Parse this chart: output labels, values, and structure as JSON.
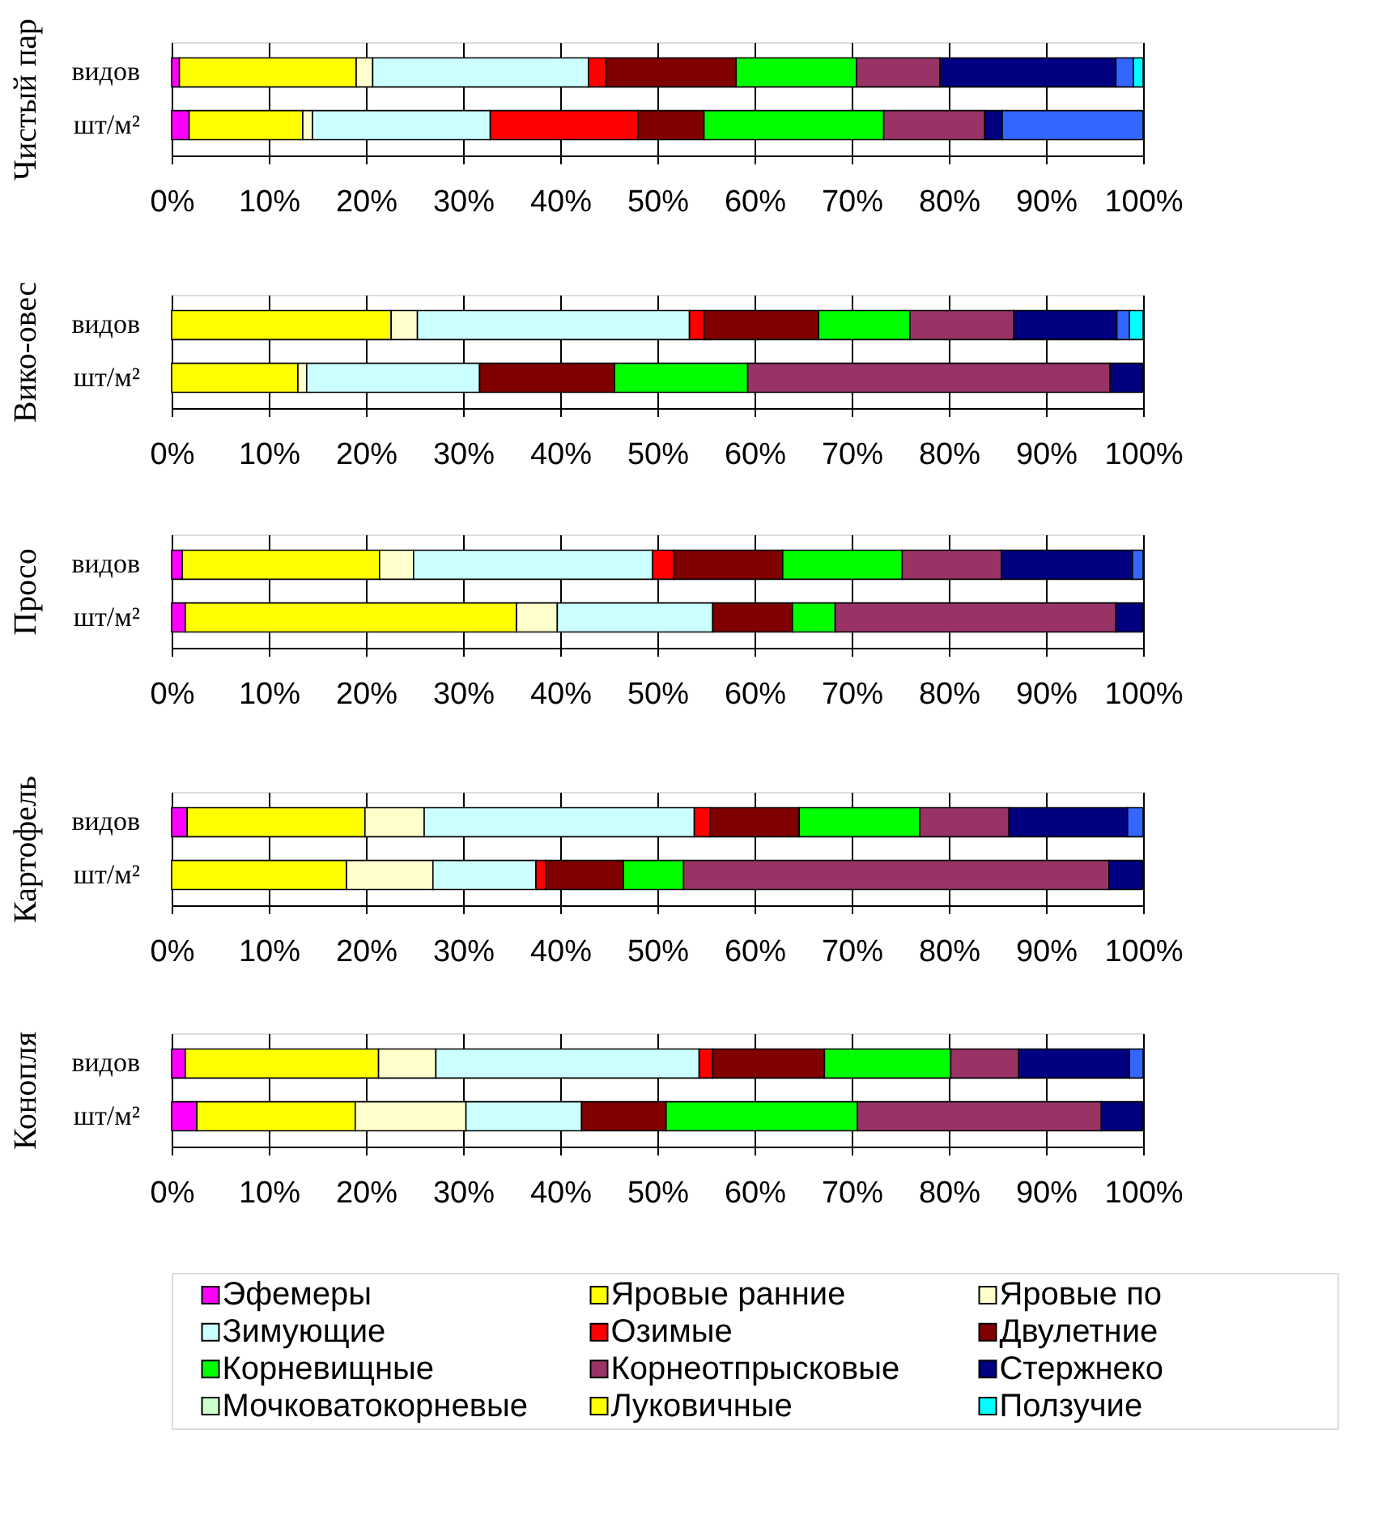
{
  "chart_data": [
    {
      "type": "bar",
      "orientation": "horizontal",
      "stacked": true,
      "ylabel": "Чистый пар",
      "categories": [
        "видов",
        "шт/м²"
      ],
      "xlim": [
        0,
        100
      ],
      "xticks": [
        {
          "value": 0,
          "label": "0%"
        },
        {
          "value": 10,
          "label": "10%"
        },
        {
          "value": 20,
          "label": "20%"
        },
        {
          "value": 30,
          "label": "30%"
        },
        {
          "value": 40,
          "label": "40%"
        },
        {
          "value": 50,
          "label": "50%"
        },
        {
          "value": 60,
          "label": "60%"
        },
        {
          "value": 70,
          "label": "70%"
        },
        {
          "value": 80,
          "label": "80%"
        },
        {
          "value": 90,
          "label": "90%"
        },
        {
          "value": 100,
          "label": "100%"
        }
      ],
      "grid": "x",
      "legend": false,
      "series": [
        {
          "color": "#ff00ff",
          "values": [
            0.8,
            1.8
          ]
        },
        {
          "color": "#ffff00",
          "values": [
            18.2,
            11.7
          ]
        },
        {
          "color": "#ffffcc",
          "values": [
            1.7,
            1.0
          ]
        },
        {
          "color": "#ccffff",
          "values": [
            22.2,
            18.3
          ]
        },
        {
          "color": "#ff0000",
          "values": [
            1.8,
            15.2
          ]
        },
        {
          "color": "#800000",
          "values": [
            13.4,
            6.8
          ]
        },
        {
          "color": "#00ff00",
          "values": [
            12.4,
            18.5
          ]
        },
        {
          "color": "#993366",
          "values": [
            8.6,
            10.4
          ]
        },
        {
          "color": "#000080",
          "values": [
            18.1,
            1.8
          ]
        },
        {
          "color": "#3366ff",
          "values": [
            1.8,
            14.5
          ]
        },
        {
          "color": "#00ffff",
          "values": [
            1.0,
            null
          ]
        }
      ]
    },
    {
      "type": "bar",
      "orientation": "horizontal",
      "stacked": true,
      "ylabel": "Вико-овес",
      "categories": [
        "видов",
        "шт/м²"
      ],
      "xlim": [
        0,
        100
      ],
      "xticks": [
        {
          "value": 0,
          "label": "0%"
        },
        {
          "value": 10,
          "label": "10%"
        },
        {
          "value": 20,
          "label": "20%"
        },
        {
          "value": 30,
          "label": "30%"
        },
        {
          "value": 40,
          "label": "40%"
        },
        {
          "value": 50,
          "label": "50%"
        },
        {
          "value": 60,
          "label": "60%"
        },
        {
          "value": 70,
          "label": "70%"
        },
        {
          "value": 80,
          "label": "80%"
        },
        {
          "value": 90,
          "label": "90%"
        },
        {
          "value": 100,
          "label": "100%"
        }
      ],
      "grid": "x",
      "legend": false,
      "series": [
        {
          "color": "#ffff00",
          "values": [
            22.6,
            13.0
          ]
        },
        {
          "color": "#ffffcc",
          "values": [
            2.7,
            0.9
          ]
        },
        {
          "color": "#ccffff",
          "values": [
            28.0,
            17.8
          ]
        },
        {
          "color": "#ff0000",
          "values": [
            1.5,
            null
          ]
        },
        {
          "color": "#800000",
          "values": [
            11.8,
            13.9
          ]
        },
        {
          "color": "#00ff00",
          "values": [
            9.4,
            13.7
          ]
        },
        {
          "color": "#993366",
          "values": [
            10.7,
            37.3
          ]
        },
        {
          "color": "#000080",
          "values": [
            10.6,
            3.4
          ]
        },
        {
          "color": "#3366ff",
          "values": [
            1.3,
            null
          ]
        },
        {
          "color": "#00ffff",
          "values": [
            1.4,
            null
          ]
        }
      ]
    },
    {
      "type": "bar",
      "orientation": "horizontal",
      "stacked": true,
      "ylabel": "Просо",
      "categories": [
        "видов",
        "шт/м²"
      ],
      "xlim": [
        0,
        100
      ],
      "xticks": [
        {
          "value": 0,
          "label": "0%"
        },
        {
          "value": 10,
          "label": "10%"
        },
        {
          "value": 20,
          "label": "20%"
        },
        {
          "value": 30,
          "label": "30%"
        },
        {
          "value": 40,
          "label": "40%"
        },
        {
          "value": 50,
          "label": "50%"
        },
        {
          "value": 60,
          "label": "60%"
        },
        {
          "value": 70,
          "label": "70%"
        },
        {
          "value": 80,
          "label": "80%"
        },
        {
          "value": 90,
          "label": "90%"
        },
        {
          "value": 100,
          "label": "100%"
        }
      ],
      "grid": "x",
      "legend": false,
      "series": [
        {
          "color": "#ff00ff",
          "values": [
            1.1,
            1.4
          ]
        },
        {
          "color": "#ffff00",
          "values": [
            20.3,
            34.1
          ]
        },
        {
          "color": "#ffffcc",
          "values": [
            3.5,
            4.2
          ]
        },
        {
          "color": "#ccffff",
          "values": [
            24.6,
            16.0
          ]
        },
        {
          "color": "#ff0000",
          "values": [
            2.2,
            null
          ]
        },
        {
          "color": "#800000",
          "values": [
            11.2,
            8.2
          ]
        },
        {
          "color": "#00ff00",
          "values": [
            12.3,
            4.4
          ]
        },
        {
          "color": "#993366",
          "values": [
            10.2,
            28.9
          ]
        },
        {
          "color": "#000080",
          "values": [
            13.5,
            2.8
          ]
        },
        {
          "color": "#3366ff",
          "values": [
            1.1,
            null
          ]
        }
      ]
    },
    {
      "type": "bar",
      "orientation": "horizontal",
      "stacked": true,
      "ylabel": "Картофель",
      "categories": [
        "видов",
        "шт/м²"
      ],
      "xlim": [
        0,
        100
      ],
      "xticks": [
        {
          "value": 0,
          "label": "0%"
        },
        {
          "value": 10,
          "label": "10%"
        },
        {
          "value": 20,
          "label": "20%"
        },
        {
          "value": 30,
          "label": "30%"
        },
        {
          "value": 40,
          "label": "40%"
        },
        {
          "value": 50,
          "label": "50%"
        },
        {
          "value": 60,
          "label": "60%"
        },
        {
          "value": 70,
          "label": "70%"
        },
        {
          "value": 80,
          "label": "80%"
        },
        {
          "value": 90,
          "label": "90%"
        },
        {
          "value": 100,
          "label": "100%"
        }
      ],
      "grid": "x",
      "legend": false,
      "series": [
        {
          "color": "#ff00ff",
          "values": [
            1.6,
            null
          ]
        },
        {
          "color": "#ffff00",
          "values": [
            18.3,
            18.0
          ]
        },
        {
          "color": "#ffffcc",
          "values": [
            6.1,
            8.9
          ]
        },
        {
          "color": "#ccffff",
          "values": [
            27.8,
            10.6
          ]
        },
        {
          "color": "#ff0000",
          "values": [
            1.6,
            1.0
          ]
        },
        {
          "color": "#800000",
          "values": [
            9.2,
            8.0
          ]
        },
        {
          "color": "#00ff00",
          "values": [
            12.4,
            6.2
          ]
        },
        {
          "color": "#993366",
          "values": [
            9.2,
            43.8
          ]
        },
        {
          "color": "#000080",
          "values": [
            12.2,
            3.5
          ]
        },
        {
          "color": "#3366ff",
          "values": [
            1.6,
            null
          ]
        }
      ]
    },
    {
      "type": "bar",
      "orientation": "horizontal",
      "stacked": true,
      "ylabel": "Конопля",
      "categories": [
        "видов",
        "шт/м²"
      ],
      "xlim": [
        0,
        100
      ],
      "xticks": [
        {
          "value": 0,
          "label": "0%"
        },
        {
          "value": 10,
          "label": "10%"
        },
        {
          "value": 20,
          "label": "20%"
        },
        {
          "value": 30,
          "label": "30%"
        },
        {
          "value": 40,
          "label": "40%"
        },
        {
          "value": 50,
          "label": "50%"
        },
        {
          "value": 60,
          "label": "60%"
        },
        {
          "value": 70,
          "label": "70%"
        },
        {
          "value": 80,
          "label": "80%"
        },
        {
          "value": 90,
          "label": "90%"
        },
        {
          "value": 100,
          "label": "100%"
        }
      ],
      "grid": "x",
      "legend": "bottom",
      "series": [
        {
          "name": "Эфемеры",
          "color": "#ff00ff",
          "values": [
            1.4,
            2.6
          ]
        },
        {
          "name": "Яровые ранние",
          "color": "#ffff00",
          "values": [
            19.9,
            16.3
          ]
        },
        {
          "name": "Яровые по",
          "color": "#ffffcc",
          "values": [
            5.9,
            11.4
          ]
        },
        {
          "name": "Зимующие",
          "color": "#ccffff",
          "values": [
            27.1,
            11.9
          ]
        },
        {
          "name": "Озимые",
          "color": "#ff0000",
          "values": [
            1.4,
            null
          ]
        },
        {
          "name": "Двулетние",
          "color": "#800000",
          "values": [
            11.5,
            8.7
          ]
        },
        {
          "name": "Корневищные",
          "color": "#00ff00",
          "values": [
            13.0,
            19.7
          ]
        },
        {
          "name": "Корнеотпрысковые",
          "color": "#993366",
          "values": [
            7.0,
            25.1
          ]
        },
        {
          "name": "Стержнеко",
          "color": "#000080",
          "values": [
            11.4,
            4.3
          ]
        },
        {
          "name": "Мочковатокорневые",
          "color": "#ccffcc",
          "values": [
            null,
            null
          ]
        },
        {
          "name": "Луковичные",
          "color": "#ffff00",
          "values": [
            null,
            null
          ]
        },
        {
          "color": "#3366ff",
          "values": [
            1.4,
            null
          ]
        },
        {
          "name": "Ползучие",
          "color": "#00ffff",
          "values": [
            null,
            null
          ]
        }
      ]
    }
  ]
}
